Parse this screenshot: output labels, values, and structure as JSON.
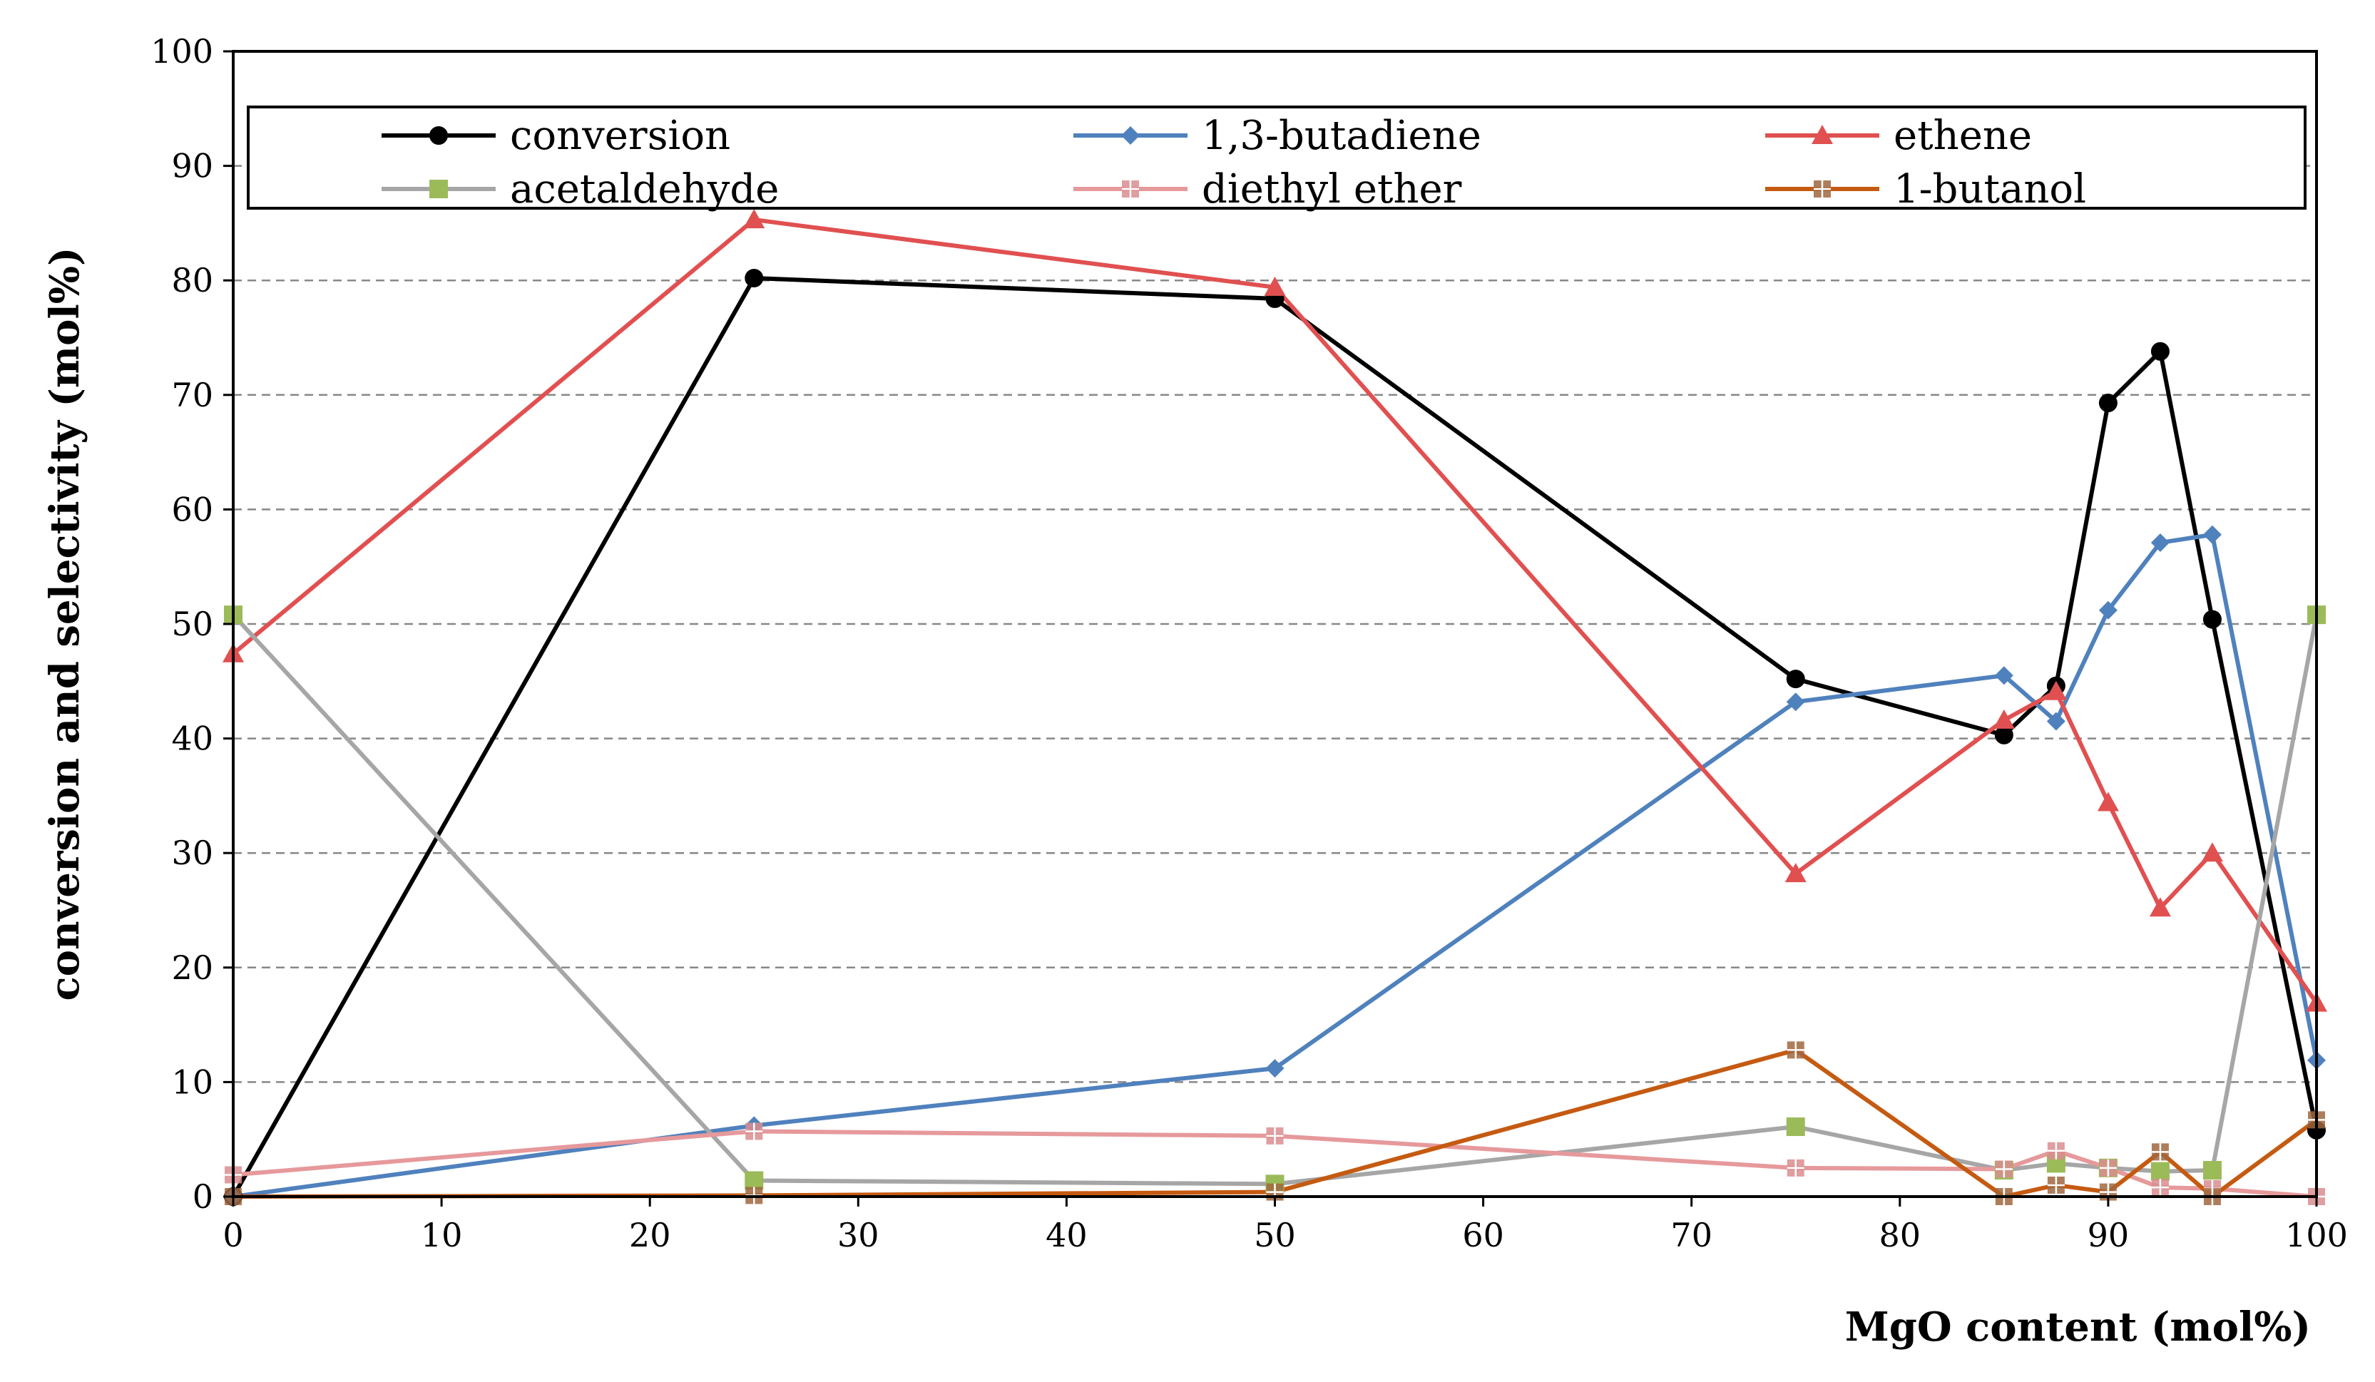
{
  "chart_data": {
    "type": "line",
    "title": "",
    "xlabel": "MgO content  (mol%)",
    "ylabel": "conversion and selectivity  (mol%)",
    "xlim": [
      0,
      100
    ],
    "ylim": [
      0,
      100
    ],
    "xticks": [
      0,
      10,
      20,
      30,
      40,
      50,
      60,
      70,
      80,
      90,
      100
    ],
    "yticks": [
      0,
      10,
      20,
      30,
      40,
      50,
      60,
      70,
      80,
      90,
      100
    ],
    "grid": "horizontal-dashed",
    "legend_position": "top",
    "series": [
      {
        "name": "conversion",
        "color": "#000000",
        "marker": "circle",
        "x": [
          0,
          25,
          50,
          75,
          85,
          87.5,
          90,
          92.5,
          95,
          100
        ],
        "y": [
          0,
          80.2,
          78.4,
          45.2,
          40.3,
          44.6,
          69.3,
          73.8,
          50.4,
          5.8
        ]
      },
      {
        "name": "1,3-butadiene",
        "color": "#4f81bd",
        "marker": "diamond",
        "x": [
          0,
          25,
          50,
          75,
          85,
          87.5,
          90,
          92.5,
          95,
          100
        ],
        "y": [
          0,
          6.2,
          11.2,
          43.2,
          45.5,
          41.5,
          51.2,
          57.1,
          57.8,
          11.9
        ]
      },
      {
        "name": "ethene",
        "color": "#e15050",
        "marker": "triangle",
        "x": [
          0,
          25,
          50,
          75,
          85,
          87.5,
          90,
          92.5,
          95,
          100
        ],
        "y": [
          47.4,
          85.3,
          79.4,
          28.2,
          41.6,
          44.1,
          34.4,
          25.2,
          30.0,
          16.9
        ]
      },
      {
        "name": "acetaldehyde",
        "color": "#a6a6a6",
        "marker_color": "#9bbb59",
        "marker": "square",
        "x": [
          0,
          25,
          50,
          75,
          85,
          87.5,
          90,
          92.5,
          95,
          100
        ],
        "y": [
          50.8,
          1.4,
          1.1,
          6.1,
          2.3,
          2.9,
          2.5,
          2.2,
          2.3,
          50.8
        ]
      },
      {
        "name": "diethyl ether",
        "color": "#e6999b",
        "marker_color": "#d98d8f",
        "marker": "square-cross",
        "x": [
          0,
          25,
          50,
          75,
          85,
          87.5,
          90,
          92.5,
          95,
          100
        ],
        "y": [
          1.9,
          5.7,
          5.3,
          2.5,
          2.4,
          4.0,
          2.5,
          0.8,
          0.7,
          0
        ]
      },
      {
        "name": "1-butanol",
        "color": "#c55a11",
        "marker_color": "#a0673f",
        "marker": "square-cross",
        "x": [
          0,
          25,
          50,
          75,
          85,
          87.5,
          90,
          92.5,
          95,
          100
        ],
        "y": [
          0,
          0.1,
          0.4,
          12.8,
          0,
          1.0,
          0.4,
          3.9,
          0,
          6.7
        ]
      }
    ]
  }
}
